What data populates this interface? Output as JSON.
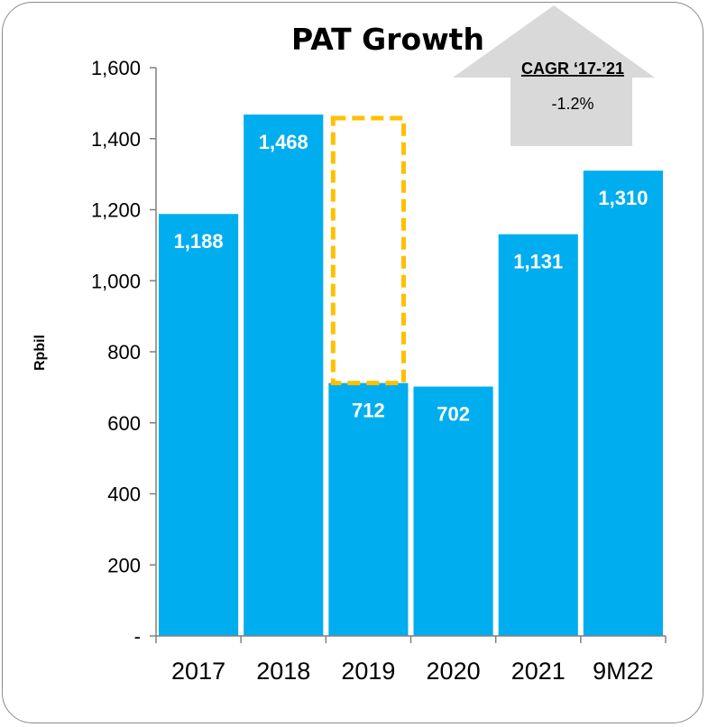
{
  "chart_data": {
    "type": "bar",
    "title": "PAT Growth",
    "ylabel": "Rpbil",
    "xlabel": "",
    "categories": [
      "2017",
      "2018",
      "2019",
      "2020",
      "2021",
      "9M22"
    ],
    "values": [
      1188,
      1468,
      712,
      702,
      1131,
      1310
    ],
    "data_labels": [
      "1,188",
      "1,468",
      "712",
      "702",
      "1,131",
      "1,310"
    ],
    "ylim": [
      0,
      1600
    ],
    "yticks": [
      0,
      200,
      400,
      600,
      800,
      1000,
      1200,
      1400,
      1600
    ],
    "ytick_labels": [
      "-",
      "200",
      "400",
      "600",
      "800",
      "1,000",
      "1,200",
      "1,400",
      "1,600"
    ],
    "grid": false,
    "bar_color": "#00AEEF",
    "highlight": {
      "category": "2019",
      "from": 712,
      "to": 1468,
      "color": "#FFC000",
      "style": "dashed"
    },
    "annotation": {
      "title": "CAGR ‘17-’21",
      "value": "-1.2%",
      "color": "#D9D9D9"
    }
  }
}
